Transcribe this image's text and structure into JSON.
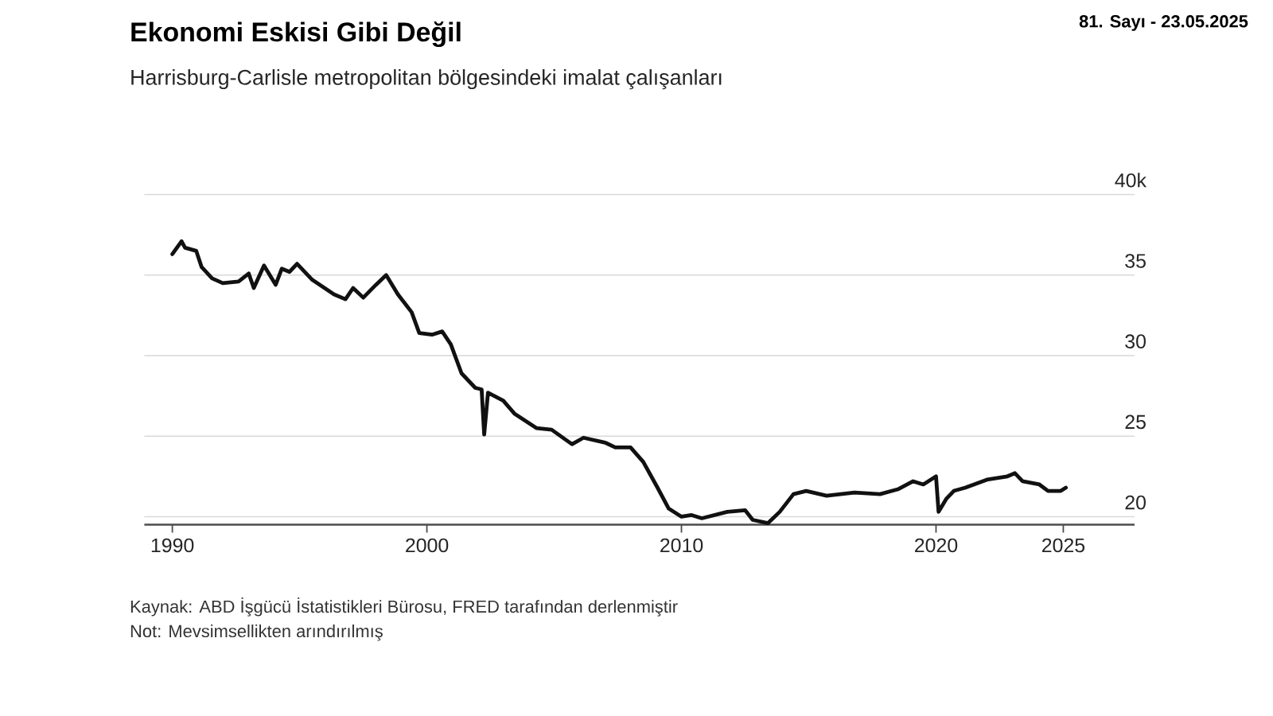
{
  "chart_data": {
    "type": "line",
    "title": "Ekonomi Eskisi Gibi Değil",
    "subtitle": "Harrisburg-Carlisle metropolitan bölgesindeki imalat çalışanları",
    "annotations": [
      "81. Sayı - 23.05.2025",
      "Kaynak: ABD İşgücü İstatistikleri Bürosu, FRED tarafından derlenmiştir",
      "Not: Mevsimsellikten arındırılmış"
    ],
    "xlim": [
      1988.9,
      2027.8
    ],
    "xticks": [
      1990,
      2000,
      2010,
      2020,
      2025
    ],
    "ylim": [
      19.5,
      40
    ],
    "yticks": [
      {
        "value": 40,
        "label": "40k"
      },
      35,
      30,
      25,
      20
    ],
    "grid": "y",
    "line_style": "solid",
    "series": [
      {
        "color": "#111111",
        "x": [
          1990.0,
          1990.36,
          1990.5,
          1990.94,
          1991.15,
          1991.56,
          1991.98,
          1992.6,
          1993.0,
          1993.2,
          1993.6,
          1994.06,
          1994.3,
          1994.6,
          1994.9,
          1995.5,
          1996.35,
          1996.8,
          1997.1,
          1997.5,
          1998.0,
          1998.4,
          1998.86,
          1999.4,
          1999.7,
          2000.2,
          2000.6,
          2000.94,
          2001.36,
          2001.9,
          2002.15,
          2002.25,
          2002.4,
          2003.0,
          2003.44,
          2004.3,
          2004.9,
          2005.7,
          2006.15,
          2007.0,
          2007.4,
          2008.0,
          2008.5,
          2009.06,
          2009.5,
          2010.0,
          2010.4,
          2010.8,
          2011.8,
          2012.5,
          2012.8,
          2013.4,
          2013.86,
          2014.4,
          2014.9,
          2015.7,
          2016.8,
          2017.8,
          2018.5,
          2019.1,
          2019.5,
          2020.0,
          2020.1,
          2020.4,
          2020.7,
          2021.15,
          2022.0,
          2022.8,
          2023.1,
          2023.4,
          2024.06,
          2024.4,
          2024.9,
          2025.1
        ],
        "values": [
          36.3,
          37.1,
          36.7,
          36.5,
          35.5,
          34.8,
          34.5,
          34.6,
          35.1,
          34.2,
          35.6,
          34.4,
          35.4,
          35.2,
          35.7,
          34.7,
          33.8,
          33.5,
          34.2,
          33.6,
          34.4,
          35.0,
          33.8,
          32.7,
          31.4,
          31.3,
          31.5,
          30.7,
          28.9,
          28.0,
          27.9,
          25.1,
          27.7,
          27.2,
          26.4,
          25.5,
          25.4,
          24.5,
          24.9,
          24.6,
          24.3,
          24.3,
          23.4,
          21.8,
          20.5,
          20.0,
          20.1,
          19.9,
          20.3,
          20.4,
          19.8,
          19.6,
          20.3,
          21.4,
          21.6,
          21.3,
          21.5,
          21.4,
          21.7,
          22.2,
          22.0,
          22.5,
          20.3,
          21.1,
          21.6,
          21.8,
          22.3,
          22.5,
          22.7,
          22.2,
          22.0,
          21.6,
          21.6,
          21.8
        ]
      }
    ]
  }
}
